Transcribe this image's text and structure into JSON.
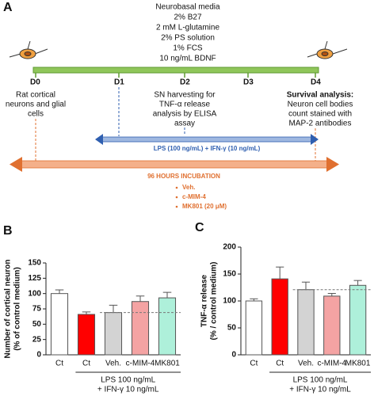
{
  "panel_a": {
    "panel_label": "A",
    "media": [
      "Neurobasal media",
      "2% B27",
      "2 mM L-glutamine",
      "2% PS solution",
      "1% FCS",
      "10 ng/mL BDNF"
    ],
    "days": [
      "D0",
      "D1",
      "D2",
      "D3",
      "D4"
    ],
    "d0_note": [
      "Rat cortical",
      "neurons and glial",
      "cells"
    ],
    "d2_note": [
      "SN harvesting for",
      "TNF-α release",
      "analysis by ELISA",
      "assay"
    ],
    "d4_title": "Survival analysis:",
    "d4_note": [
      "Neuron cell bodies",
      "count stained with",
      "MAP-2 antibodies"
    ],
    "treatment_arrow": "LPS (100 ng/mL) + IFN-γ (10 ng/mL)",
    "incubation_arrow": "96 HOURS INCUBATION",
    "bullets": [
      "Veh.",
      "c-MIM-4",
      "MK801 (20 μM)"
    ]
  },
  "chart_data": [
    {
      "type": "bar",
      "panel_label": "B",
      "ylabel": [
        "Number of cortical neuron",
        "(% of control medium)"
      ],
      "categories": [
        "Ct",
        "Ct",
        "Veh.",
        "c-MIM-4",
        "MK801"
      ],
      "values": [
        100,
        66,
        69,
        87,
        93
      ],
      "errors": [
        6,
        4,
        12,
        9,
        9
      ],
      "colors": [
        "#ffffff",
        "#ff0000",
        "#d3d3d3",
        "#f4a3a3",
        "#aef0da"
      ],
      "ylim": [
        0,
        150
      ],
      "yticks": [
        0,
        25,
        50,
        75,
        100,
        125,
        150
      ],
      "reference_line": 69,
      "group_label": [
        "LPS 100 ng/mL",
        "+ IFN-γ 10 ng/mL"
      ]
    },
    {
      "type": "bar",
      "panel_label": "C",
      "ylabel": [
        "TNF-α release",
        "(% / control medium)"
      ],
      "categories": [
        "Ct",
        "Ct",
        "Veh.",
        "c-MIM-4",
        "MK801"
      ],
      "values": [
        100,
        141,
        121,
        109,
        129
      ],
      "errors": [
        4,
        22,
        14,
        5,
        9
      ],
      "colors": [
        "#ffffff",
        "#ff0000",
        "#d3d3d3",
        "#f4a3a3",
        "#aef0da"
      ],
      "ylim": [
        0,
        200
      ],
      "yticks": [
        0,
        50,
        100,
        150,
        200
      ],
      "reference_line": 121,
      "group_label": [
        "LPS 100 ng/mL",
        "+ IFN-γ 10 ng/mL"
      ]
    }
  ]
}
